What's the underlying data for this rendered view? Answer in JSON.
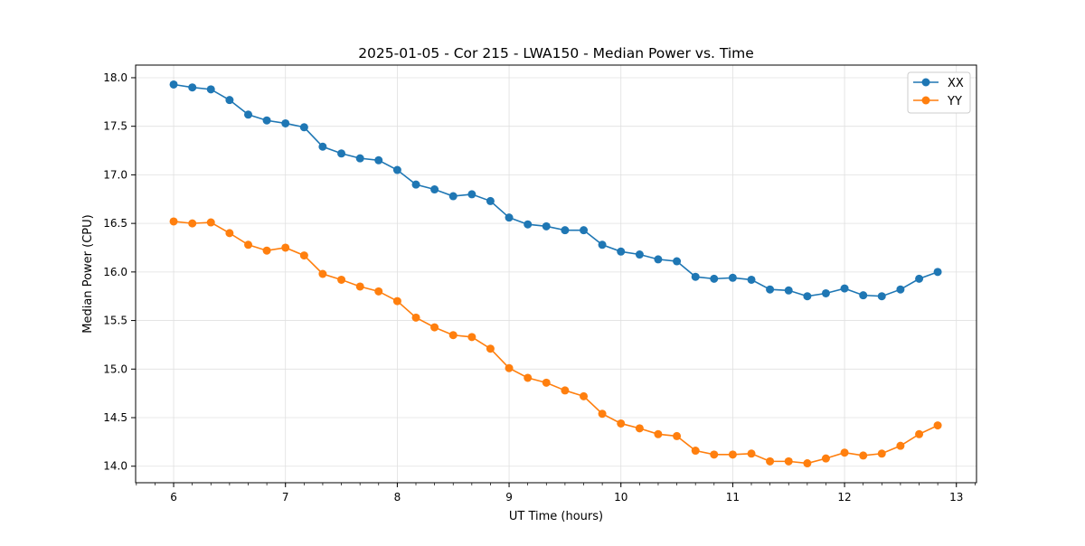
{
  "chart_data": {
    "type": "line",
    "title": "2025-01-05 - Cor 215 - LWA150 - Median Power vs. Time",
    "xlabel": "UT Time (hours)",
    "ylabel": "Median Power (CPU)",
    "xlim": [
      5.66,
      13.18
    ],
    "ylim": [
      13.83,
      18.13
    ],
    "xticks": [
      "6",
      "7",
      "8",
      "9",
      "10",
      "11",
      "12",
      "13"
    ],
    "yticks": [
      "14.0",
      "14.5",
      "15.0",
      "15.5",
      "16.0",
      "16.5",
      "17.0",
      "17.5",
      "18.0"
    ],
    "grid": true,
    "legend_position": "top-right",
    "x": [
      6.0,
      6.167,
      6.333,
      6.5,
      6.667,
      6.833,
      7.0,
      7.167,
      7.333,
      7.5,
      7.667,
      7.833,
      8.0,
      8.167,
      8.333,
      8.5,
      8.667,
      8.833,
      9.0,
      9.167,
      9.333,
      9.5,
      9.667,
      9.833,
      10.0,
      10.167,
      10.333,
      10.5,
      10.667,
      10.833,
      11.0,
      11.167,
      11.333,
      11.5,
      11.667,
      11.833,
      12.0,
      12.167,
      12.333,
      12.5,
      12.667,
      12.833
    ],
    "series": [
      {
        "name": "XX",
        "color": "#1f77b4",
        "values": [
          17.93,
          17.9,
          17.88,
          17.77,
          17.62,
          17.56,
          17.53,
          17.49,
          17.29,
          17.22,
          17.17,
          17.15,
          17.05,
          16.9,
          16.85,
          16.78,
          16.8,
          16.73,
          16.56,
          16.49,
          16.47,
          16.43,
          16.43,
          16.28,
          16.21,
          16.18,
          16.13,
          16.11,
          15.95,
          15.93,
          15.94,
          15.92,
          15.82,
          15.81,
          15.75,
          15.78,
          15.83,
          15.76,
          15.75,
          15.82,
          15.93,
          16.0
        ]
      },
      {
        "name": "YY",
        "color": "#ff7f0e",
        "values": [
          16.52,
          16.5,
          16.51,
          16.4,
          16.28,
          16.22,
          16.25,
          16.17,
          15.98,
          15.92,
          15.85,
          15.8,
          15.7,
          15.53,
          15.43,
          15.35,
          15.33,
          15.21,
          15.01,
          14.91,
          14.86,
          14.78,
          14.72,
          14.54,
          14.44,
          14.39,
          14.33,
          14.31,
          14.16,
          14.12,
          14.12,
          14.13,
          14.05,
          14.05,
          14.03,
          14.08,
          14.14,
          14.11,
          14.13,
          14.21,
          14.33,
          14.42
        ]
      }
    ]
  }
}
